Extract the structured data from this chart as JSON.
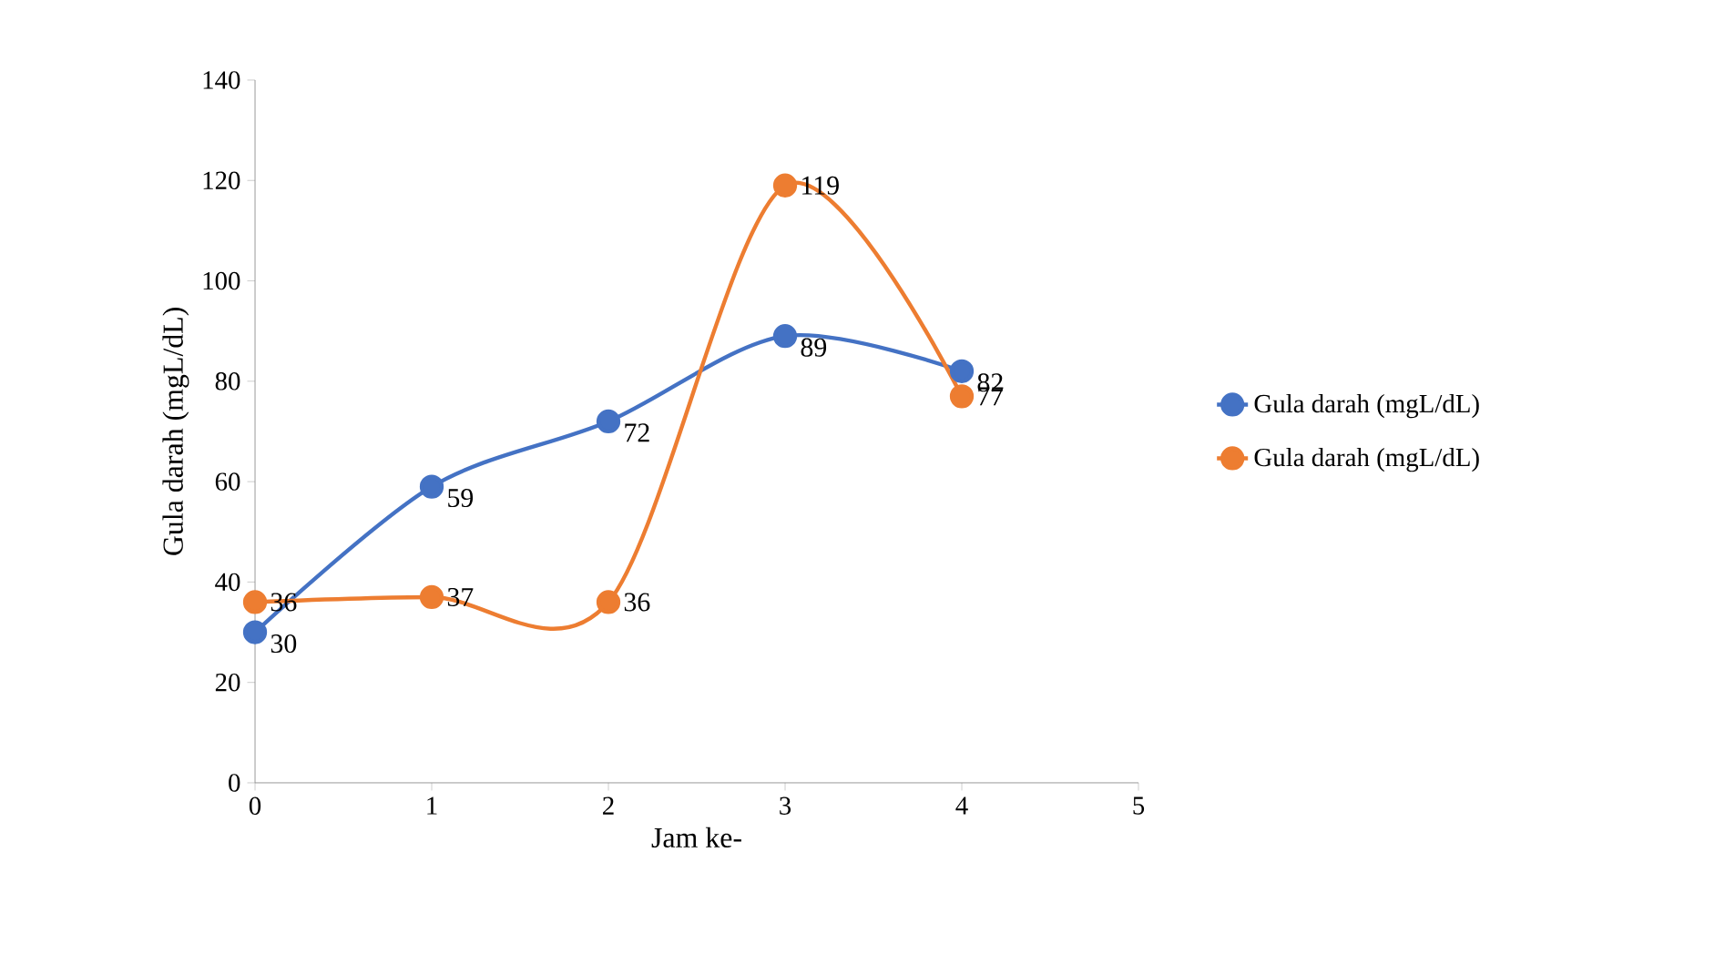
{
  "chart_data": {
    "type": "line",
    "xlabel": "Jam ke-",
    "ylabel": "Gula darah (mgL/dL)",
    "x": [
      0,
      1,
      2,
      3,
      4
    ],
    "series": [
      {
        "name": "Gula darah (mgL/dL)",
        "color": "#4472c4",
        "values": [
          30,
          59,
          72,
          89,
          82
        ]
      },
      {
        "name": "Gula darah (mgL/dL)",
        "color": "#ed7d31",
        "values": [
          36,
          37,
          36,
          119,
          77
        ]
      }
    ],
    "xlim": [
      0,
      5
    ],
    "xticks": [
      0,
      1,
      2,
      3,
      4,
      5
    ],
    "ylim": [
      0,
      140
    ],
    "yticks": [
      0,
      20,
      40,
      60,
      80,
      100,
      120,
      140
    ],
    "grid": false,
    "legend": "right",
    "marker": "circle",
    "line_style": "solid",
    "data_labels": true
  }
}
